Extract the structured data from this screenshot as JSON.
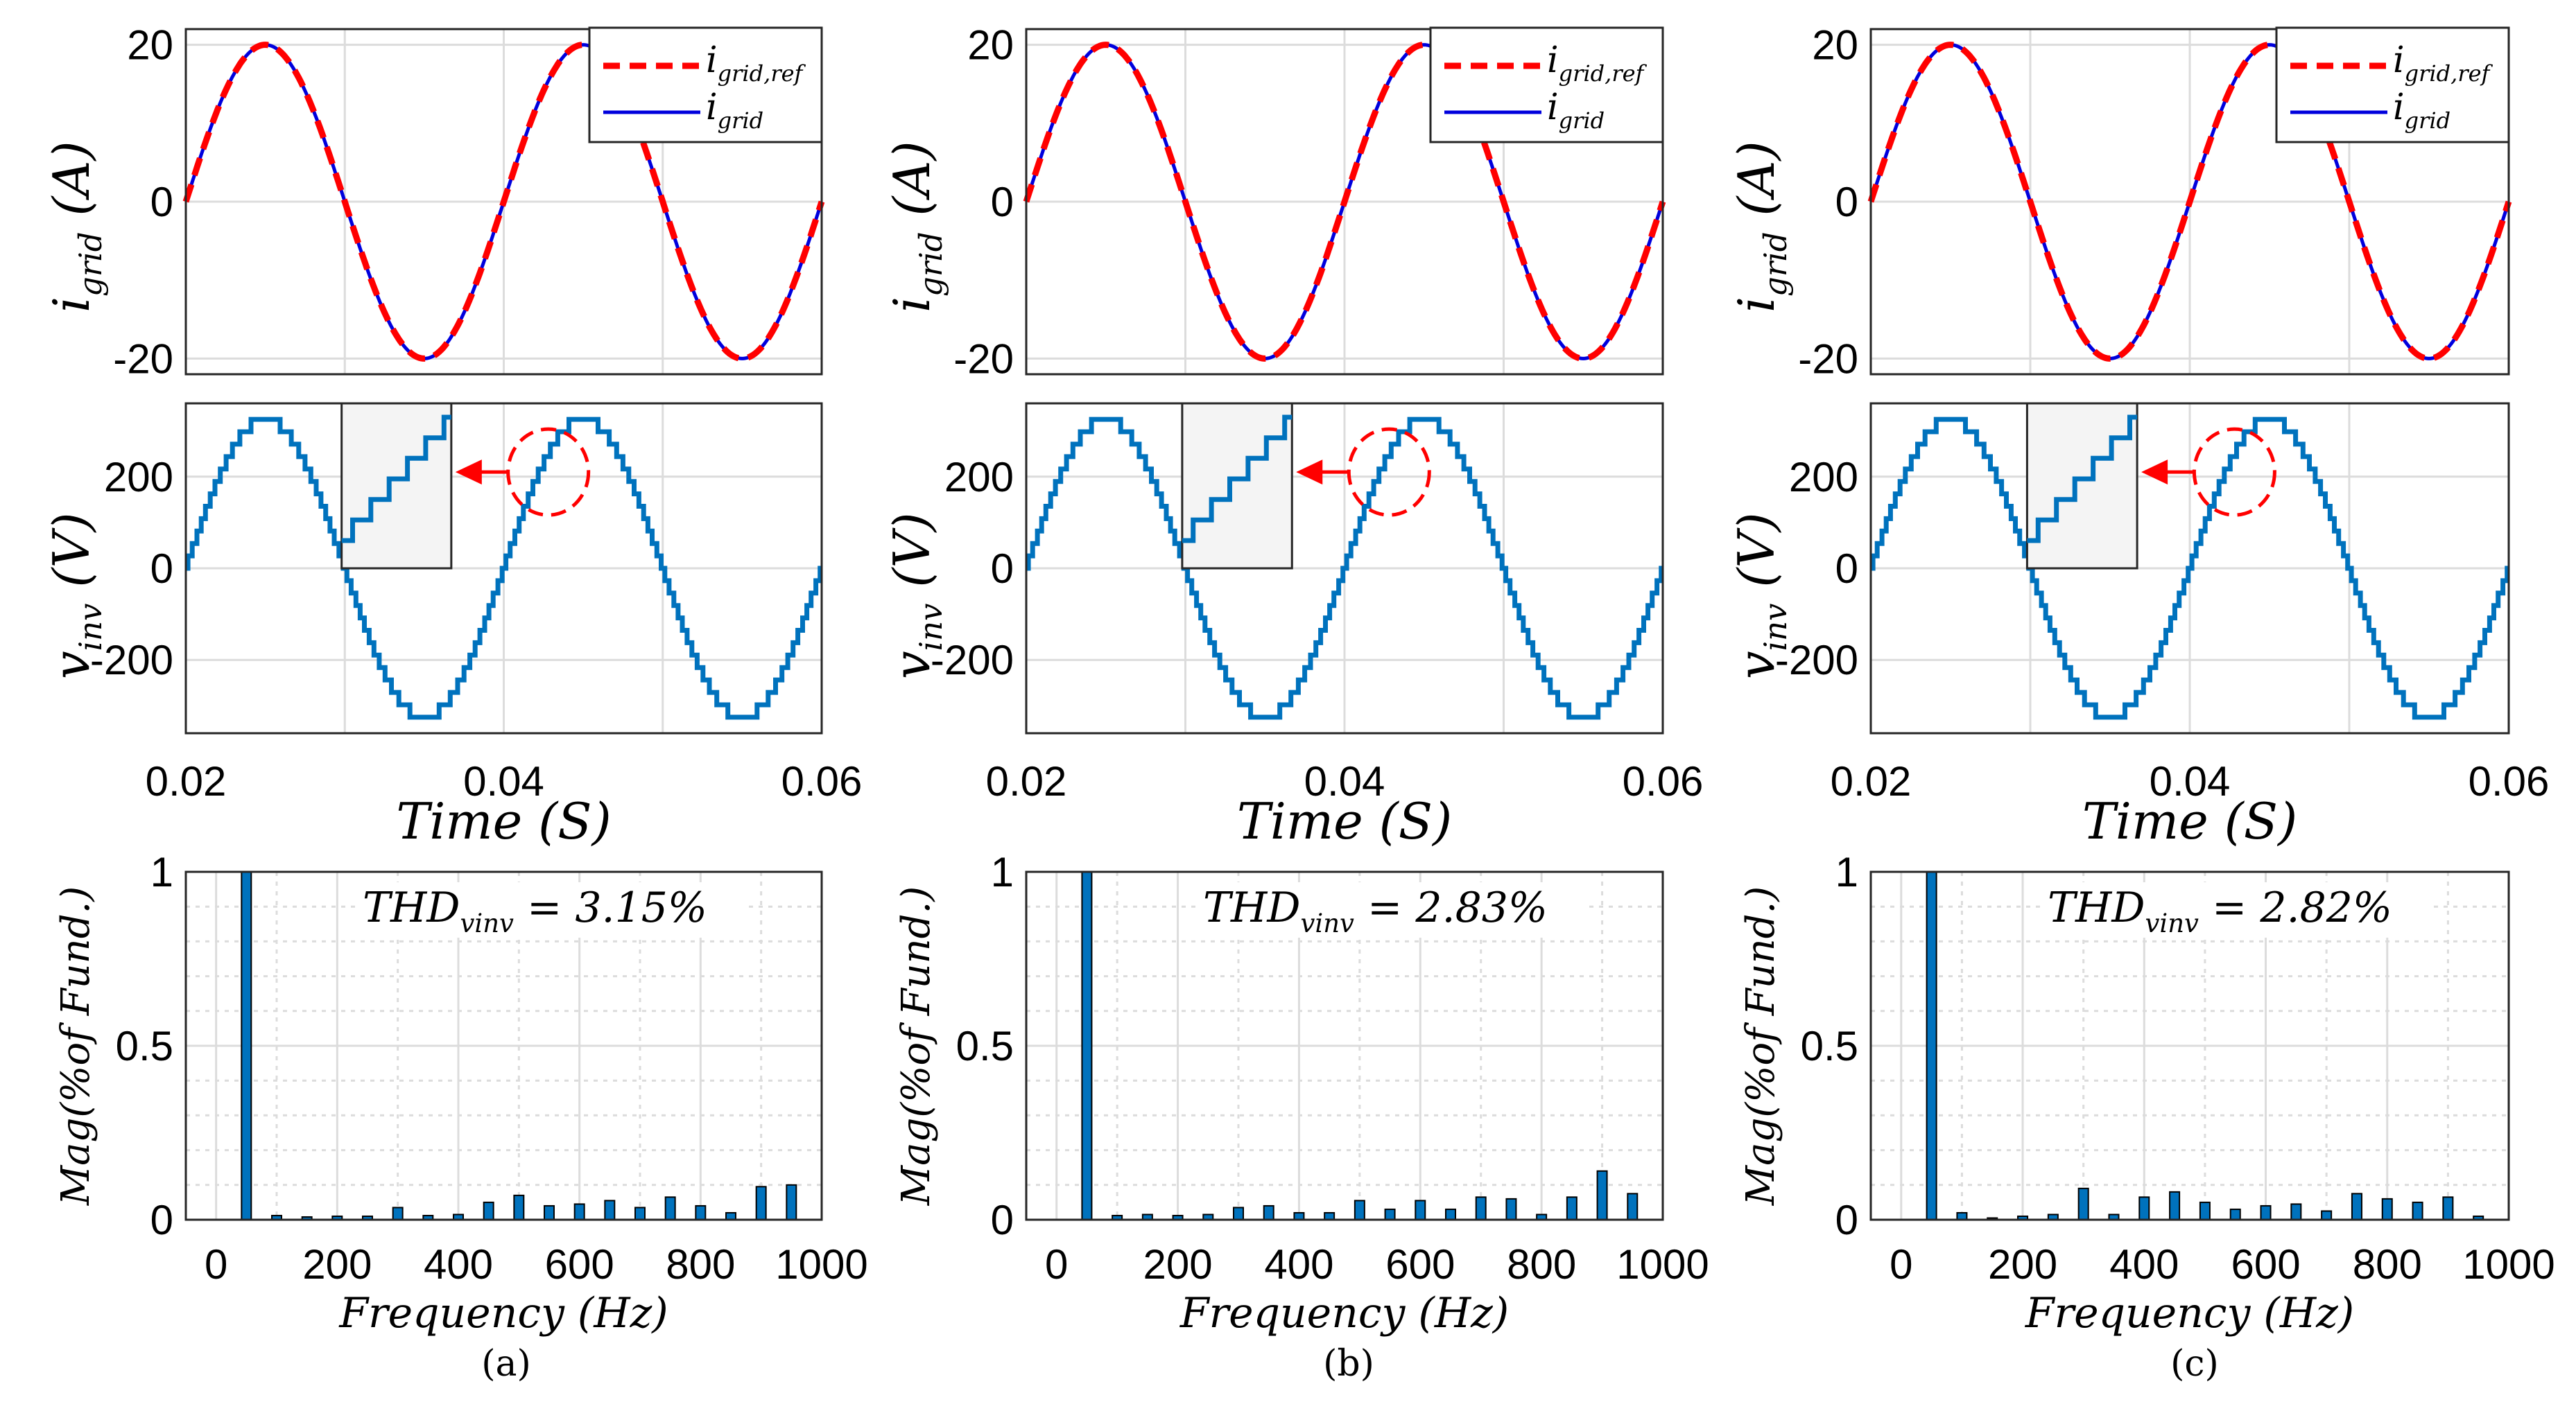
{
  "chart_data": [
    {
      "panel": "(a)",
      "type": "line",
      "subplot": "current",
      "ylabel": "i_grid (A)",
      "ylim": [
        -22,
        22
      ],
      "xlim": [
        0.02,
        0.06
      ],
      "yticks": [
        "20",
        "0",
        "-20"
      ],
      "series": [
        {
          "name": "i_grid,ref",
          "style": "dashed",
          "color": "#ff0000",
          "amplitude": 20,
          "frequency_hz": 50
        },
        {
          "name": "i_grid",
          "style": "solid",
          "color": "#0000dd",
          "amplitude": 20,
          "frequency_hz": 50
        }
      ]
    },
    {
      "panel": "(a)",
      "type": "line",
      "subplot": "voltage",
      "ylabel": "v_inv (V)",
      "xlabel": "Time (S)",
      "xlim": [
        0.02,
        0.06
      ],
      "ylim": [
        -360,
        360
      ],
      "xticks": [
        "0.02",
        "0.04",
        "0.06"
      ],
      "yticks": [
        "200",
        "0",
        "-200"
      ],
      "series": [
        {
          "name": "v_inv",
          "color": "#0072BD",
          "amplitude": 325,
          "frequency_hz": 50,
          "levels": 25
        }
      ]
    },
    {
      "panel": "(a)",
      "type": "bar",
      "subplot": "spectrum",
      "annotation": "THD_vinv = 3.15%",
      "xlabel": "Frequency (Hz)",
      "ylabel": "Mag(% of Fund.)",
      "xlim": [
        -50,
        1000
      ],
      "ylim": [
        0,
        1
      ],
      "xticks": [
        "0",
        "200",
        "400",
        "600",
        "800",
        "1000"
      ],
      "yticks": [
        "1",
        "0.5",
        "0"
      ],
      "x": [
        50,
        100,
        150,
        200,
        250,
        300,
        350,
        400,
        450,
        500,
        550,
        600,
        650,
        700,
        750,
        800,
        850,
        900,
        950
      ],
      "values": [
        1.0,
        0.012,
        0.008,
        0.01,
        0.01,
        0.035,
        0.012,
        0.015,
        0.05,
        0.07,
        0.04,
        0.045,
        0.055,
        0.035,
        0.065,
        0.04,
        0.02,
        0.095,
        0.1
      ]
    },
    {
      "panel": "(b)",
      "type": "line",
      "subplot": "current",
      "ylabel": "i_grid (A)",
      "ylim": [
        -22,
        22
      ],
      "xlim": [
        0.02,
        0.06
      ],
      "yticks": [
        "20",
        "0",
        "-20"
      ],
      "series": [
        {
          "name": "i_grid,ref",
          "style": "dashed",
          "color": "#ff0000",
          "amplitude": 20,
          "frequency_hz": 50
        },
        {
          "name": "i_grid",
          "style": "solid",
          "color": "#0000dd",
          "amplitude": 20,
          "frequency_hz": 50
        }
      ]
    },
    {
      "panel": "(b)",
      "type": "line",
      "subplot": "voltage",
      "ylabel": "v_inv (V)",
      "xlabel": "Time (S)",
      "xlim": [
        0.02,
        0.06
      ],
      "ylim": [
        -360,
        360
      ],
      "xticks": [
        "0.02",
        "0.04",
        "0.06"
      ],
      "yticks": [
        "200",
        "0",
        "-200"
      ],
      "series": [
        {
          "name": "v_inv",
          "color": "#0072BD",
          "amplitude": 325,
          "frequency_hz": 50,
          "levels": 25
        }
      ]
    },
    {
      "panel": "(b)",
      "type": "bar",
      "subplot": "spectrum",
      "annotation": "THD_vinv = 2.83%",
      "xlabel": "Frequency (Hz)",
      "ylabel": "Mag(% of Fund.)",
      "xlim": [
        -50,
        1000
      ],
      "ylim": [
        0,
        1
      ],
      "xticks": [
        "0",
        "200",
        "400",
        "600",
        "800",
        "1000"
      ],
      "yticks": [
        "1",
        "0.5",
        "0"
      ],
      "x": [
        50,
        100,
        150,
        200,
        250,
        300,
        350,
        400,
        450,
        500,
        550,
        600,
        650,
        700,
        750,
        800,
        850,
        900,
        950
      ],
      "values": [
        1.0,
        0.012,
        0.015,
        0.012,
        0.015,
        0.035,
        0.04,
        0.02,
        0.02,
        0.055,
        0.03,
        0.055,
        0.03,
        0.065,
        0.06,
        0.015,
        0.065,
        0.14,
        0.075
      ]
    },
    {
      "panel": "(c)",
      "type": "line",
      "subplot": "current",
      "ylabel": "i_grid (A)",
      "ylim": [
        -22,
        22
      ],
      "xlim": [
        0.02,
        0.06
      ],
      "yticks": [
        "20",
        "0",
        "-20"
      ],
      "series": [
        {
          "name": "i_grid,ref",
          "style": "dashed",
          "color": "#ff0000",
          "amplitude": 20,
          "frequency_hz": 50
        },
        {
          "name": "i_grid",
          "style": "solid",
          "color": "#0000dd",
          "amplitude": 20,
          "frequency_hz": 50
        }
      ]
    },
    {
      "panel": "(c)",
      "type": "line",
      "subplot": "voltage",
      "ylabel": "v_inv (V)",
      "xlabel": "Time (S)",
      "xlim": [
        0.02,
        0.06
      ],
      "ylim": [
        -360,
        360
      ],
      "xticks": [
        "0.02",
        "0.04",
        "0.06"
      ],
      "yticks": [
        "200",
        "0",
        "-200"
      ],
      "series": [
        {
          "name": "v_inv",
          "color": "#0072BD",
          "amplitude": 325,
          "frequency_hz": 50,
          "levels": 25
        }
      ]
    },
    {
      "panel": "(c)",
      "type": "bar",
      "subplot": "spectrum",
      "annotation": "THD_vinv = 2.82%",
      "xlabel": "Frequency (Hz)",
      "ylabel": "Mag(% of Fund.)",
      "xlim": [
        -50,
        1000
      ],
      "ylim": [
        0,
        1
      ],
      "xticks": [
        "0",
        "200",
        "400",
        "600",
        "800",
        "1000"
      ],
      "yticks": [
        "1",
        "0.5",
        "0"
      ],
      "x": [
        50,
        100,
        150,
        200,
        250,
        300,
        350,
        400,
        450,
        500,
        550,
        600,
        650,
        700,
        750,
        800,
        850,
        900,
        950
      ],
      "values": [
        1.0,
        0.02,
        0.005,
        0.01,
        0.015,
        0.09,
        0.015,
        0.065,
        0.08,
        0.05,
        0.03,
        0.04,
        0.045,
        0.025,
        0.075,
        0.06,
        0.05,
        0.065,
        0.01
      ]
    }
  ],
  "captions": [
    "(a)",
    "(b)",
    "(c)"
  ],
  "colors": {
    "ref": "#ff0000",
    "grid_current": "#0000dd",
    "vinv": "#0072BD",
    "bar": "#0072BD",
    "gridline": "#dcdcdc",
    "inset_bg": "#f4f4f4"
  },
  "labels": {
    "legend_ref_main": "i",
    "legend_ref_sub": "grid,ref",
    "legend_meas_main": "i",
    "legend_meas_sub": "grid",
    "ylabel_i_main": "i",
    "ylabel_i_sub": "grid",
    "ylabel_i_unit": " (A)",
    "ylabel_v_main": "v",
    "ylabel_v_sub": "inv",
    "ylabel_v_unit": " (V)",
    "xlabel_time": "Time (S)",
    "xlabel_freq": "Frequency (Hz)",
    "ylabel_mag": "Mag(%of Fund.)",
    "thd_main": "THD",
    "thd_sub": "vinv",
    "thd_values": [
      " = 3.15%",
      " = 2.83%",
      " = 2.82%"
    ]
  }
}
